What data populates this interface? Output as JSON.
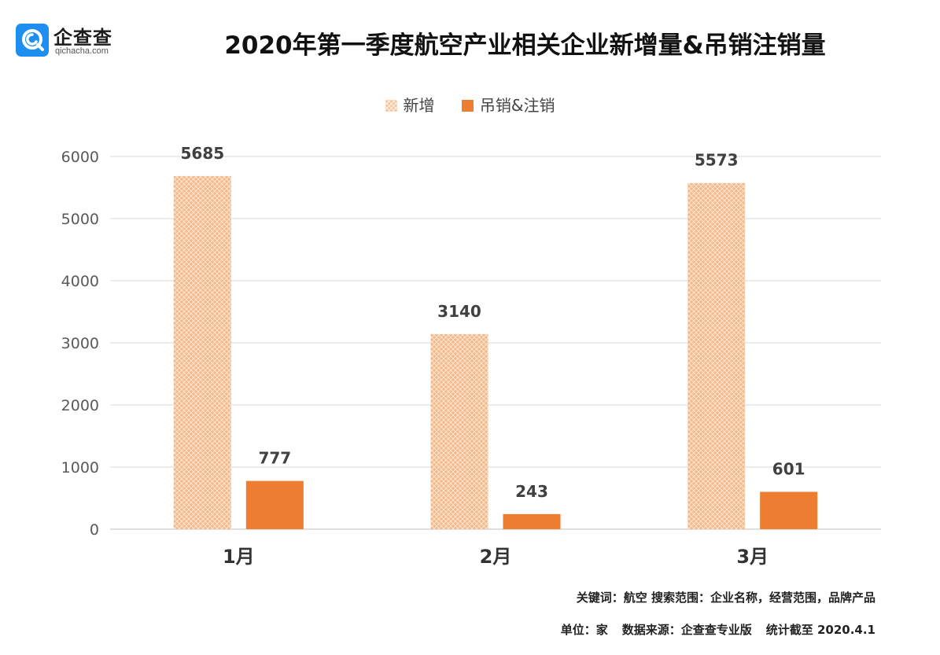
{
  "logo": {
    "name_cn": "企查查",
    "name_en": "qichacha.com",
    "icon": "qichacha-q-icon",
    "color": "#1e8ff0"
  },
  "chart_data": {
    "type": "bar",
    "title": "2020年第一季度航空产业相关企业新增量&吊销注销量",
    "categories": [
      "1月",
      "2月",
      "3月"
    ],
    "series": [
      {
        "name": "新增",
        "values": [
          5685,
          3140,
          5573
        ],
        "color": "#f6c49a",
        "pattern": "crosshatch"
      },
      {
        "name": "吊销&注销",
        "values": [
          777,
          243,
          601
        ],
        "color": "#ed7d31"
      }
    ],
    "ylim": [
      0,
      6000
    ],
    "yticks": [
      "0",
      "1000",
      "2000",
      "3000",
      "4000",
      "5000",
      "6000"
    ],
    "grid": true,
    "legend": "top-center",
    "data_labels": true
  },
  "footer": {
    "keyword_line": "关键词：航空  搜索范围：企业名称，经营范围，品牌产品",
    "unit": "单位：家",
    "source": "数据来源：企查查专业版",
    "cutoff": "统计截至 2020.4.1"
  }
}
